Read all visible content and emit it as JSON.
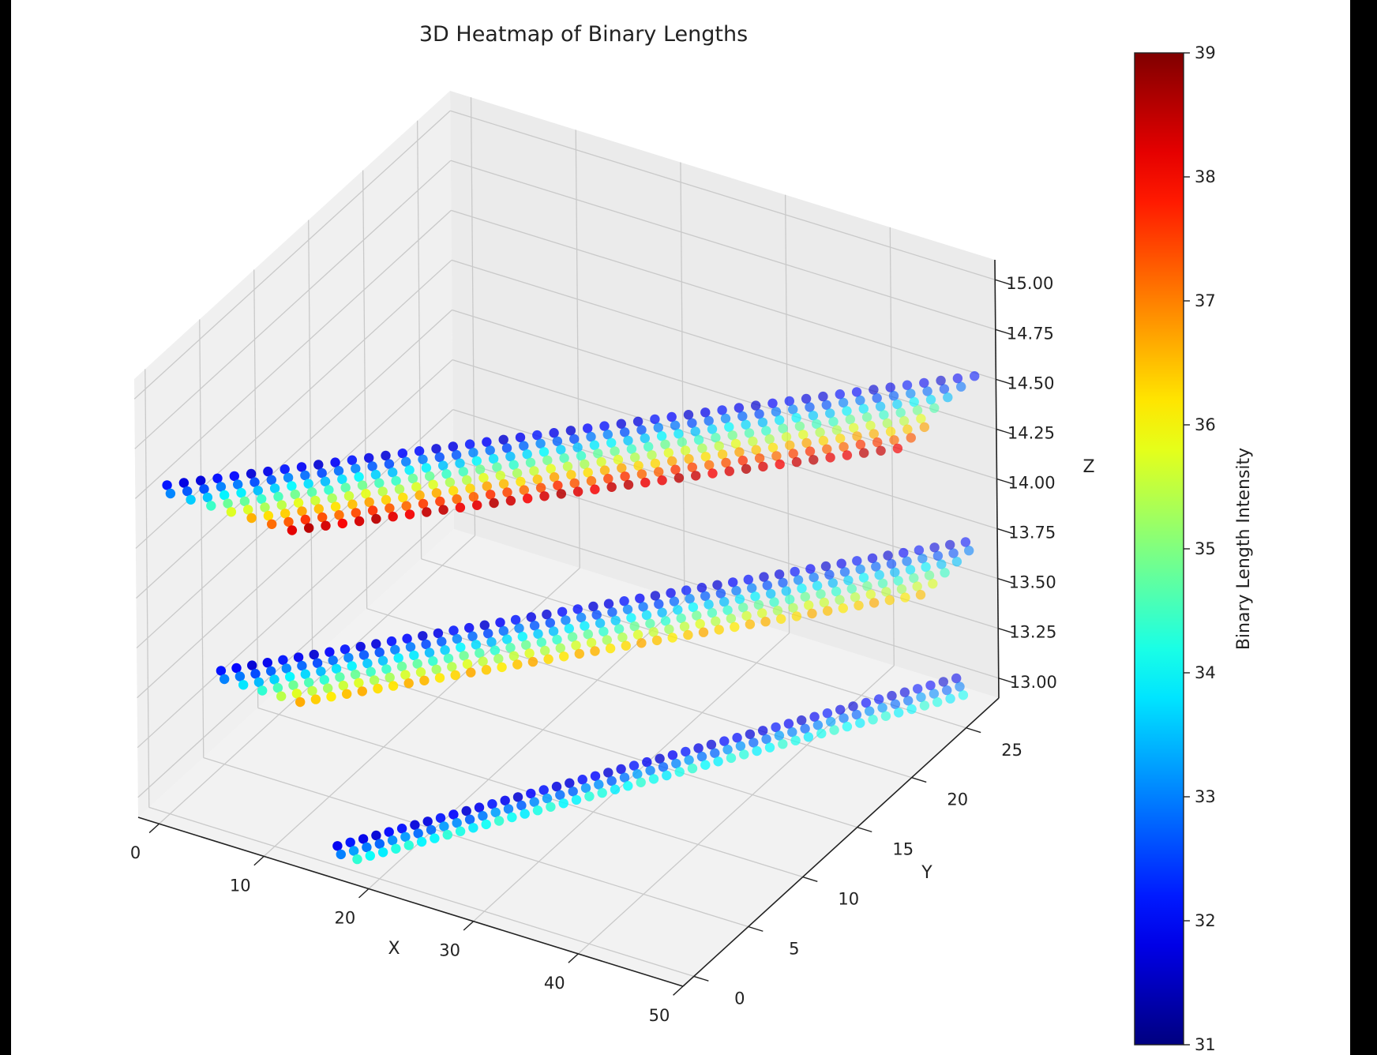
{
  "chart_data": {
    "type": "scatter",
    "projection": "3d",
    "title": "3D Heatmap of Binary Lengths",
    "xlabel": "X",
    "ylabel": "Y",
    "zlabel": "Z",
    "xlim": [
      -2,
      50
    ],
    "ylim": [
      -1,
      28
    ],
    "zlim": [
      12.9,
      15.1
    ],
    "x_ticks": [
      "0",
      "10",
      "20",
      "30",
      "40",
      "50"
    ],
    "y_ticks": [
      "0",
      "5",
      "10",
      "15",
      "20",
      "25"
    ],
    "z_ticks": [
      "13.00",
      "13.25",
      "13.50",
      "13.75",
      "14.00",
      "14.25",
      "14.50",
      "14.75",
      "15.00"
    ],
    "grid": true,
    "colormap": "jet",
    "colorbar": {
      "label": "Binary Length Intensity",
      "min": 31,
      "max": 39,
      "ticks": [
        "31",
        "32",
        "33",
        "34",
        "35",
        "36",
        "37",
        "38",
        "39"
      ]
    },
    "point_color_range": [
      31,
      39
    ],
    "series": [
      {
        "z": 13,
        "x": [
          16,
          47
        ],
        "y": [
          0,
          27
        ]
      },
      {
        "z": 13.7,
        "x": [
          5,
          48
        ],
        "y": [
          0,
          27
        ]
      },
      {
        "z": 14.55,
        "x": [
          0,
          49
        ],
        "y": [
          0,
          27
        ]
      }
    ]
  }
}
